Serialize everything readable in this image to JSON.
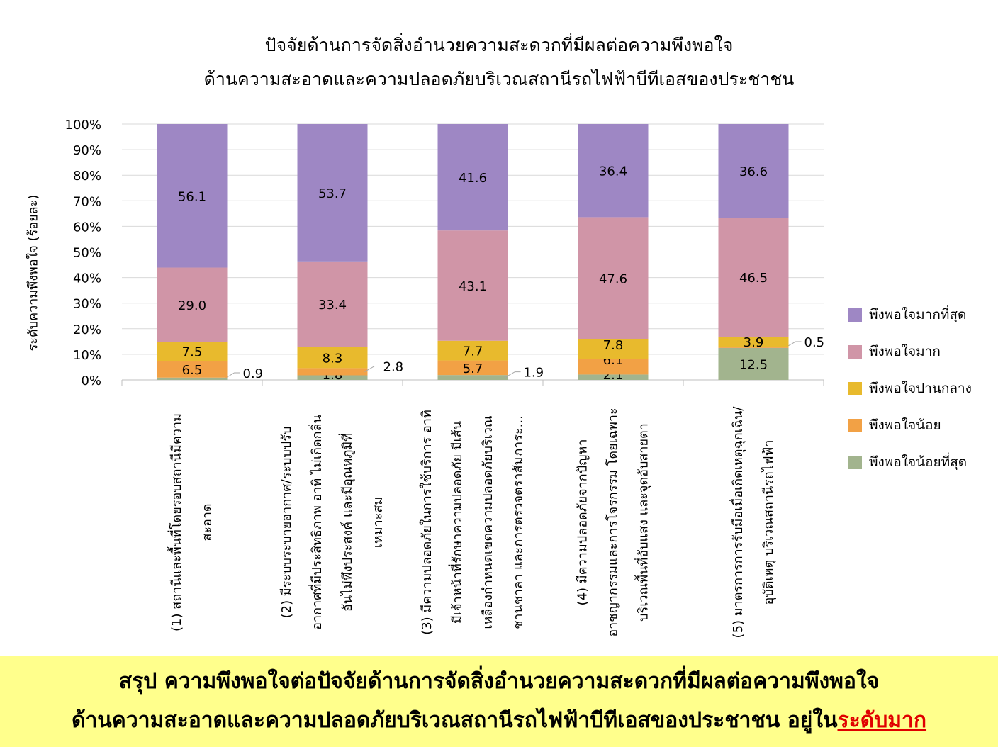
{
  "chart_data": {
    "type": "bar",
    "stacked": true,
    "title": [
      "ปัจจัยด้านการจัดสิ่งอำนวยความสะดวกที่มีผลต่อความพึงพอใจ",
      "ด้านความสะอาดและความปลอดภัยบริเวณสถานีรถไฟฟ้าบีทีเอสของประชาชน"
    ],
    "ylabel": "ระดับความพึงพอใจ (ร้อยละ)",
    "ylim": [
      0,
      100
    ],
    "yticks": [
      "0%",
      "10%",
      "20%",
      "30%",
      "40%",
      "50%",
      "60%",
      "70%",
      "80%",
      "90%",
      "100%"
    ],
    "grid": true,
    "legend_position": "right",
    "categories": [
      [
        "(1) สถานีและพื้นที่โดยรอบสถานีมีความ",
        "สะอาด"
      ],
      [
        "(2) มีระบบระบายอากาศ/ระบบปรับ",
        "อากาศที่มีประสิทธิภาพ อาทิ ไม่เกิดกลิ่น",
        "อันไม่พึงประสงค์ และมีอุณหภูมิที่",
        "เหมาะสม"
      ],
      [
        "(3) มีความปลอดภัยในการใช้บริการ อาทิ",
        "มีเจ้าหน้าที่รักษาความปลอดภัย มีเส้น",
        "เหลืองกำหนดเขตความปลอดภัยบริเวณ",
        "ชานชาลา และการตรวจตราสัมภาระ..."
      ],
      [
        "(4) มีความปลอดภัยจากปัญหา",
        "อาชญากรรมและการโจรกรรม โดยเฉพาะ",
        "บริเวณพื้นที่อับแสง และจุดอับสายตา"
      ],
      [
        "(5) มาตรการการรับมือเมื่อเกิดเหตุฉุกเฉิน/",
        "อุบัติเหตุ บริเวณสถานีรถไฟฟ้า"
      ]
    ],
    "series": [
      {
        "name": "พึงพอใจน้อยที่สุด",
        "color": "#A2B48E",
        "values": [
          0.9,
          1.8,
          1.9,
          2.1,
          12.5
        ]
      },
      {
        "name": "พึงพอใจน้อย",
        "color": "#F2A145",
        "values": [
          6.5,
          2.8,
          5.7,
          6.1,
          0.5
        ]
      },
      {
        "name": "พึงพอใจปานกลาง",
        "color": "#E8BA2D",
        "values": [
          7.5,
          8.3,
          7.7,
          7.8,
          3.9
        ]
      },
      {
        "name": "พึงพอใจมาก",
        "color": "#D095A7",
        "values": [
          29.0,
          33.4,
          43.1,
          47.6,
          46.5
        ]
      },
      {
        "name": "พึงพอใจมากที่สุด",
        "color": "#9E87C4",
        "values": [
          56.1,
          53.7,
          41.6,
          36.4,
          36.6
        ]
      }
    ],
    "legend_order": [
      4,
      3,
      2,
      1,
      0
    ]
  },
  "summary": {
    "line1": "สรุป ความพึงพอใจต่อปัจจัยด้านการจัดสิ่งอำนวยความสะดวกที่มีผลต่อความพึงพอใจ",
    "line2": "ด้านความสะอาดและความปลอดภัยบริเวณสถานีรถไฟฟ้าบีทีเอสของประชาชน อยู่ใน",
    "highlight": "ระดับมาก",
    "highlight_color": "#E00000",
    "background": "#FFFF8C"
  }
}
